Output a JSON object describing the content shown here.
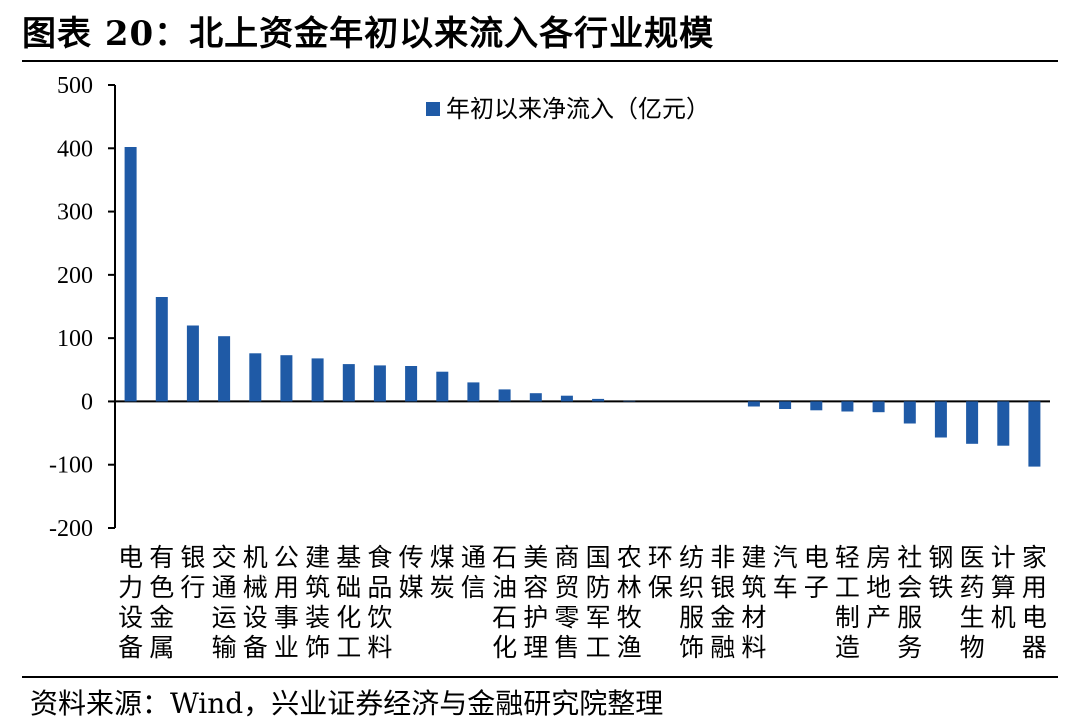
{
  "title": "图表 20：北上资金年初以来流入各行业规模",
  "source": "资料来源：Wind，兴业证券经济与金融研究院整理",
  "chart_data": {
    "type": "bar",
    "title": "",
    "xlabel": "",
    "ylabel": "",
    "ylim": [
      -200,
      500
    ],
    "yticks": [
      500,
      400,
      300,
      200,
      100,
      0,
      -100,
      -200
    ],
    "grid": false,
    "legend_position": "top-center",
    "bar_color": "#1f5aa6",
    "series": [
      {
        "name": "年初以来净流入（亿元）",
        "values": [
          402,
          165,
          120,
          103,
          76,
          73,
          68,
          59,
          57,
          56,
          47,
          30,
          19,
          13,
          9,
          4,
          1,
          0,
          0,
          0,
          -8,
          -12,
          -14,
          -16,
          -17,
          -35,
          -57,
          -67,
          -70,
          -103
        ]
      }
    ],
    "categories": [
      "电力设备",
      "有色金属",
      "银行",
      "交通运输",
      "机械设备",
      "公用事业",
      "建筑装饰",
      "基础化工",
      "食品饮料",
      "传媒",
      "煤炭",
      "通信",
      "石油石化",
      "美容护理",
      "商贸零售",
      "国防军工",
      "农林牧渔",
      "环保",
      "纺织服饰",
      "非银金融",
      "建筑材料",
      "汽车",
      "电子",
      "轻工制造",
      "房地产",
      "社会服务",
      "钢铁",
      "医药生物",
      "计算机",
      "家用电器"
    ]
  }
}
